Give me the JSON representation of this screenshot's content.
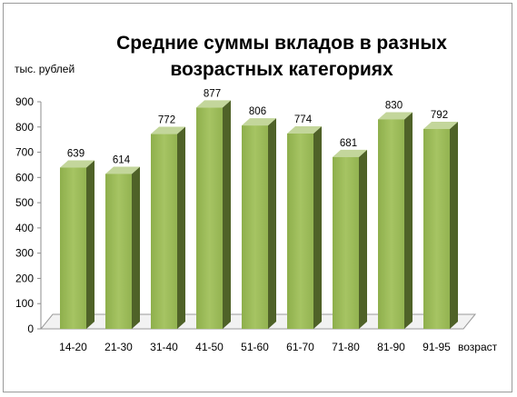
{
  "chart_data": {
    "type": "bar",
    "title": "Средние суммы вкладов в разных возрастных категориях",
    "title_lines": [
      "Средние суммы вкладов в разных",
      "возрастных категориях"
    ],
    "ylabel": "тыс. рублей",
    "xlabel": "возраст",
    "categories": [
      "14-20",
      "21-30",
      "31-40",
      "41-50",
      "51-60",
      "61-70",
      "71-80",
      "81-90",
      "91-95"
    ],
    "values": [
      639,
      614,
      772,
      877,
      806,
      774,
      681,
      830,
      792
    ],
    "yticks": [
      0,
      100,
      200,
      300,
      400,
      500,
      600,
      700,
      800,
      900
    ],
    "ylim": [
      0,
      900
    ],
    "grid": false,
    "legend": "none",
    "bar_colors": {
      "front": "#9bbb59",
      "side": "#4f6228",
      "top": "#c3d69b"
    }
  }
}
